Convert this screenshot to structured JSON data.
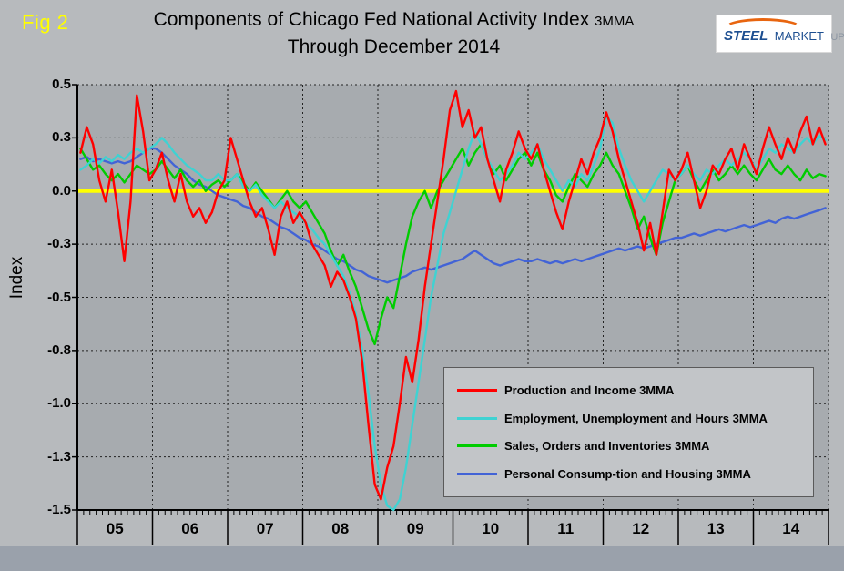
{
  "header": {
    "fig_label": "Fig 2",
    "fig_label_color": "#ffff00",
    "title_line1": "Components of Chicago Fed National Activity Index",
    "title_suffix": "3MMA",
    "title_line2": "Through December 2014",
    "logo": {
      "word1": "STEEL",
      "word2": "MARKET",
      "word3": "UPDATE"
    }
  },
  "chart_data": {
    "type": "line",
    "title": "Components of Chicago Fed National Activity Index 3MMA Through December 2014",
    "xlabel": "",
    "ylabel": "Index",
    "ylim": [
      -1.5,
      0.5
    ],
    "x_range": [
      "2005-01",
      "2014-12"
    ],
    "x_frequency": "monthly",
    "grid": true,
    "legend_position": "middle-right",
    "plot_bg": "#a7abaf",
    "zero_line_color": "#ffff00",
    "y_ticks": [
      {
        "value": 0.5,
        "label": "0.5"
      },
      {
        "value": 0.25,
        "label": "0.3"
      },
      {
        "value": 0.0,
        "label": "0.0"
      },
      {
        "value": -0.25,
        "label": "-0.3"
      },
      {
        "value": -0.5,
        "label": "-0.5"
      },
      {
        "value": -0.75,
        "label": "-0.8"
      },
      {
        "value": -1.0,
        "label": "-1.0"
      },
      {
        "value": -1.25,
        "label": "-1.3"
      },
      {
        "value": -1.5,
        "label": "-1.5"
      }
    ],
    "x_years": [
      "05",
      "06",
      "07",
      "08",
      "09",
      "10",
      "11",
      "12",
      "13",
      "14"
    ],
    "series": [
      {
        "name": "Production and Income 3MMA",
        "color": "#ff0000",
        "values": [
          0.18,
          0.3,
          0.22,
          0.05,
          -0.05,
          0.1,
          -0.1,
          -0.33,
          -0.05,
          0.45,
          0.28,
          0.05,
          0.1,
          0.18,
          0.05,
          -0.05,
          0.08,
          -0.05,
          -0.12,
          -0.08,
          -0.15,
          -0.1,
          0.0,
          0.05,
          0.25,
          0.15,
          0.05,
          -0.05,
          -0.12,
          -0.08,
          -0.18,
          -0.3,
          -0.12,
          -0.05,
          -0.15,
          -0.1,
          -0.15,
          -0.25,
          -0.3,
          -0.35,
          -0.45,
          -0.38,
          -0.42,
          -0.5,
          -0.6,
          -0.8,
          -1.1,
          -1.38,
          -1.45,
          -1.3,
          -1.2,
          -1.0,
          -0.78,
          -0.9,
          -0.7,
          -0.45,
          -0.25,
          -0.05,
          0.15,
          0.38,
          0.47,
          0.3,
          0.38,
          0.25,
          0.3,
          0.15,
          0.05,
          -0.05,
          0.1,
          0.18,
          0.28,
          0.2,
          0.15,
          0.22,
          0.1,
          0.0,
          -0.1,
          -0.18,
          -0.05,
          0.05,
          0.15,
          0.08,
          0.18,
          0.25,
          0.37,
          0.28,
          0.15,
          0.05,
          -0.05,
          -0.15,
          -0.28,
          -0.15,
          -0.3,
          -0.1,
          0.1,
          0.05,
          0.1,
          0.18,
          0.05,
          -0.08,
          0.0,
          0.12,
          0.08,
          0.15,
          0.2,
          0.1,
          0.22,
          0.15,
          0.08,
          0.2,
          0.3,
          0.22,
          0.15,
          0.25,
          0.18,
          0.28,
          0.35,
          0.22,
          0.3,
          0.22
        ]
      },
      {
        "name": "Employment, Unemployment and Hours 3MMA",
        "color": "#3fd2d2",
        "values": [
          0.1,
          0.12,
          0.15,
          0.13,
          0.16,
          0.14,
          0.17,
          0.15,
          0.18,
          0.2,
          0.18,
          0.2,
          0.22,
          0.25,
          0.22,
          0.18,
          0.15,
          0.12,
          0.1,
          0.08,
          0.05,
          0.05,
          0.08,
          0.05,
          0.05,
          0.08,
          0.02,
          0.0,
          0.03,
          -0.02,
          -0.05,
          -0.08,
          -0.05,
          -0.08,
          -0.1,
          -0.12,
          -0.15,
          -0.18,
          -0.22,
          -0.25,
          -0.3,
          -0.35,
          -0.4,
          -0.48,
          -0.58,
          -0.75,
          -0.95,
          -1.2,
          -1.38,
          -1.48,
          -1.5,
          -1.45,
          -1.3,
          -1.1,
          -0.9,
          -0.7,
          -0.5,
          -0.35,
          -0.2,
          -0.1,
          0.0,
          0.1,
          0.2,
          0.28,
          0.22,
          0.15,
          0.1,
          0.05,
          0.08,
          0.12,
          0.18,
          0.15,
          0.18,
          0.22,
          0.15,
          0.1,
          0.05,
          0.0,
          0.05,
          0.02,
          0.08,
          0.05,
          0.12,
          0.2,
          0.35,
          0.32,
          0.2,
          0.12,
          0.05,
          0.0,
          -0.05,
          0.0,
          0.05,
          0.1,
          0.08,
          0.05,
          0.08,
          0.12,
          0.08,
          0.05,
          0.1,
          0.08,
          0.12,
          0.15,
          0.12,
          0.15,
          0.18,
          0.15,
          0.1,
          0.15,
          0.2,
          0.18,
          0.22,
          0.2,
          0.18,
          0.22,
          0.25,
          0.22,
          0.26,
          0.24
        ]
      },
      {
        "name": "Sales, Orders and Inventories 3MMA",
        "color": "#00cc00",
        "values": [
          0.2,
          0.15,
          0.1,
          0.12,
          0.08,
          0.05,
          0.08,
          0.04,
          0.08,
          0.12,
          0.1,
          0.08,
          0.1,
          0.14,
          0.1,
          0.06,
          0.1,
          0.05,
          0.02,
          0.05,
          0.0,
          0.03,
          0.05,
          0.02,
          0.05,
          0.08,
          0.04,
          0.0,
          0.04,
          0.0,
          -0.04,
          -0.08,
          -0.04,
          0.0,
          -0.05,
          -0.08,
          -0.05,
          -0.1,
          -0.15,
          -0.2,
          -0.28,
          -0.35,
          -0.3,
          -0.38,
          -0.45,
          -0.55,
          -0.65,
          -0.72,
          -0.6,
          -0.5,
          -0.55,
          -0.4,
          -0.25,
          -0.12,
          -0.05,
          0.0,
          -0.08,
          0.0,
          0.05,
          0.1,
          0.15,
          0.2,
          0.12,
          0.18,
          0.22,
          0.15,
          0.08,
          0.12,
          0.05,
          0.1,
          0.15,
          0.18,
          0.12,
          0.18,
          0.1,
          0.05,
          -0.02,
          -0.05,
          0.02,
          0.08,
          0.05,
          0.02,
          0.08,
          0.12,
          0.18,
          0.12,
          0.08,
          0.0,
          -0.08,
          -0.18,
          -0.12,
          -0.22,
          -0.3,
          -0.15,
          -0.05,
          0.05,
          0.08,
          0.12,
          0.05,
          0.0,
          0.05,
          0.1,
          0.05,
          0.08,
          0.12,
          0.08,
          0.12,
          0.08,
          0.05,
          0.1,
          0.15,
          0.1,
          0.08,
          0.12,
          0.08,
          0.05,
          0.1,
          0.06,
          0.08,
          0.07
        ]
      },
      {
        "name": "Personal Consump-tion and Housing 3MMA",
        "color": "#4263d6",
        "values": [
          0.15,
          0.16,
          0.14,
          0.15,
          0.14,
          0.13,
          0.14,
          0.13,
          0.14,
          0.16,
          0.18,
          0.2,
          0.2,
          0.18,
          0.15,
          0.12,
          0.1,
          0.08,
          0.05,
          0.03,
          0.02,
          0.0,
          -0.02,
          -0.03,
          -0.04,
          -0.05,
          -0.07,
          -0.08,
          -0.1,
          -0.12,
          -0.13,
          -0.15,
          -0.17,
          -0.18,
          -0.2,
          -0.22,
          -0.23,
          -0.25,
          -0.26,
          -0.28,
          -0.3,
          -0.32,
          -0.33,
          -0.35,
          -0.37,
          -0.38,
          -0.4,
          -0.41,
          -0.42,
          -0.43,
          -0.42,
          -0.41,
          -0.4,
          -0.38,
          -0.37,
          -0.36,
          -0.37,
          -0.36,
          -0.35,
          -0.34,
          -0.33,
          -0.32,
          -0.3,
          -0.28,
          -0.3,
          -0.32,
          -0.34,
          -0.35,
          -0.34,
          -0.33,
          -0.32,
          -0.33,
          -0.33,
          -0.32,
          -0.33,
          -0.34,
          -0.33,
          -0.34,
          -0.33,
          -0.32,
          -0.33,
          -0.32,
          -0.31,
          -0.3,
          -0.29,
          -0.28,
          -0.27,
          -0.28,
          -0.27,
          -0.26,
          -0.27,
          -0.26,
          -0.25,
          -0.24,
          -0.23,
          -0.22,
          -0.22,
          -0.21,
          -0.2,
          -0.21,
          -0.2,
          -0.19,
          -0.18,
          -0.19,
          -0.18,
          -0.17,
          -0.16,
          -0.17,
          -0.16,
          -0.15,
          -0.14,
          -0.15,
          -0.13,
          -0.12,
          -0.13,
          -0.12,
          -0.11,
          -0.1,
          -0.09,
          -0.08
        ]
      }
    ]
  }
}
